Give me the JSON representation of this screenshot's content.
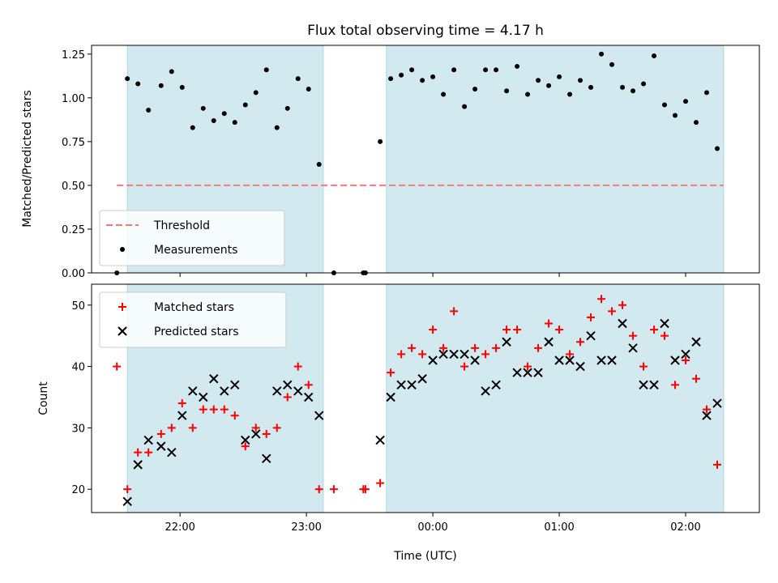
{
  "chart_data": [
    {
      "type": "scatter",
      "title": "Flux total observing time = 4.17 h",
      "xlabel": "",
      "ylabel": "Matched/Predicted stars",
      "ylim": [
        0,
        1.3
      ],
      "yticks": [
        "0.00",
        "0.25",
        "0.50",
        "0.75",
        "1.00",
        "1.25"
      ],
      "grid": false,
      "legend_position": "lower-left",
      "shaded_intervals": [
        [
          "21:35",
          "23:08"
        ],
        [
          "23:38",
          "02:18"
        ]
      ],
      "threshold": {
        "name": "Threshold",
        "value": 0.5,
        "color": "#f87878",
        "style": "dashed"
      },
      "series": [
        {
          "name": "Measurements",
          "color": "#000000",
          "marker": "dot",
          "points": [
            [
              "21:30",
              0.0
            ],
            [
              "21:35",
              1.11
            ],
            [
              "21:40",
              1.08
            ],
            [
              "21:45",
              0.93
            ],
            [
              "21:51",
              1.07
            ],
            [
              "21:56",
              1.15
            ],
            [
              "22:01",
              1.06
            ],
            [
              "22:06",
              0.83
            ],
            [
              "22:11",
              0.94
            ],
            [
              "22:16",
              0.87
            ],
            [
              "22:21",
              0.91
            ],
            [
              "22:26",
              0.86
            ],
            [
              "22:31",
              0.96
            ],
            [
              "22:36",
              1.03
            ],
            [
              "22:41",
              1.16
            ],
            [
              "22:46",
              0.83
            ],
            [
              "22:51",
              0.94
            ],
            [
              "22:56",
              1.11
            ],
            [
              "23:01",
              1.05
            ],
            [
              "23:06",
              0.62
            ],
            [
              "23:13",
              0.0
            ],
            [
              "23:27",
              0.0
            ],
            [
              "23:28",
              0.0
            ],
            [
              "23:35",
              0.75
            ],
            [
              "23:40",
              1.11
            ],
            [
              "23:45",
              1.13
            ],
            [
              "23:50",
              1.16
            ],
            [
              "23:55",
              1.1
            ],
            [
              "00:00",
              1.12
            ],
            [
              "00:05",
              1.02
            ],
            [
              "00:10",
              1.16
            ],
            [
              "00:15",
              0.95
            ],
            [
              "00:20",
              1.05
            ],
            [
              "00:25",
              1.16
            ],
            [
              "00:30",
              1.16
            ],
            [
              "00:35",
              1.04
            ],
            [
              "00:40",
              1.18
            ],
            [
              "00:45",
              1.02
            ],
            [
              "00:50",
              1.1
            ],
            [
              "00:55",
              1.07
            ],
            [
              "01:00",
              1.12
            ],
            [
              "01:05",
              1.02
            ],
            [
              "01:10",
              1.1
            ],
            [
              "01:15",
              1.06
            ],
            [
              "01:20",
              1.25
            ],
            [
              "01:25",
              1.19
            ],
            [
              "01:30",
              1.06
            ],
            [
              "01:35",
              1.04
            ],
            [
              "01:40",
              1.08
            ],
            [
              "01:45",
              1.24
            ],
            [
              "01:50",
              0.96
            ],
            [
              "01:55",
              0.9
            ],
            [
              "02:00",
              0.98
            ],
            [
              "02:05",
              0.86
            ],
            [
              "02:10",
              1.03
            ],
            [
              "02:15",
              0.71
            ]
          ]
        }
      ]
    },
    {
      "type": "scatter",
      "title": "",
      "xlabel": "Time (UTC)",
      "ylabel": "Count",
      "ylim": [
        16.2,
        53.4
      ],
      "yticks": [
        "20",
        "30",
        "40",
        "50"
      ],
      "xticks": [
        "22:00",
        "23:00",
        "00:00",
        "01:00",
        "02:00"
      ],
      "grid": false,
      "legend_position": "top-left",
      "shaded_intervals": [
        [
          "21:35",
          "23:08"
        ],
        [
          "23:38",
          "02:18"
        ]
      ],
      "series": [
        {
          "name": "Matched stars",
          "color": "#ff0000",
          "marker": "plus",
          "points": [
            [
              "21:30",
              40
            ],
            [
              "21:35",
              20
            ],
            [
              "21:40",
              26
            ],
            [
              "21:45",
              26
            ],
            [
              "21:51",
              29
            ],
            [
              "21:56",
              30
            ],
            [
              "22:01",
              34
            ],
            [
              "22:06",
              30
            ],
            [
              "22:11",
              33
            ],
            [
              "22:16",
              33
            ],
            [
              "22:21",
              33
            ],
            [
              "22:26",
              32
            ],
            [
              "22:31",
              27
            ],
            [
              "22:36",
              30
            ],
            [
              "22:41",
              29
            ],
            [
              "22:46",
              30
            ],
            [
              "22:51",
              35
            ],
            [
              "22:56",
              40
            ],
            [
              "23:01",
              37
            ],
            [
              "23:06",
              20
            ],
            [
              "23:13",
              20
            ],
            [
              "23:27",
              20
            ],
            [
              "23:28",
              20
            ],
            [
              "23:35",
              21
            ],
            [
              "23:40",
              39
            ],
            [
              "23:45",
              42
            ],
            [
              "23:50",
              43
            ],
            [
              "23:55",
              42
            ],
            [
              "00:00",
              46
            ],
            [
              "00:05",
              43
            ],
            [
              "00:10",
              49
            ],
            [
              "00:15",
              40
            ],
            [
              "00:20",
              43
            ],
            [
              "00:25",
              42
            ],
            [
              "00:30",
              43
            ],
            [
              "00:35",
              46
            ],
            [
              "00:40",
              46
            ],
            [
              "00:45",
              40
            ],
            [
              "00:50",
              43
            ],
            [
              "00:55",
              47
            ],
            [
              "01:00",
              46
            ],
            [
              "01:05",
              42
            ],
            [
              "01:10",
              44
            ],
            [
              "01:15",
              48
            ],
            [
              "01:20",
              51
            ],
            [
              "01:25",
              49
            ],
            [
              "01:30",
              50
            ],
            [
              "01:35",
              45
            ],
            [
              "01:40",
              40
            ],
            [
              "01:45",
              46
            ],
            [
              "01:50",
              45
            ],
            [
              "01:55",
              37
            ],
            [
              "02:00",
              41
            ],
            [
              "02:05",
              38
            ],
            [
              "02:10",
              33
            ],
            [
              "02:15",
              24
            ]
          ]
        },
        {
          "name": "Predicted stars",
          "color": "#000000",
          "marker": "x",
          "points": [
            [
              "21:35",
              18
            ],
            [
              "21:40",
              24
            ],
            [
              "21:45",
              28
            ],
            [
              "21:51",
              27
            ],
            [
              "21:56",
              26
            ],
            [
              "22:01",
              32
            ],
            [
              "22:06",
              36
            ],
            [
              "22:11",
              35
            ],
            [
              "22:16",
              38
            ],
            [
              "22:21",
              36
            ],
            [
              "22:26",
              37
            ],
            [
              "22:31",
              28
            ],
            [
              "22:36",
              29
            ],
            [
              "22:41",
              25
            ],
            [
              "22:46",
              36
            ],
            [
              "22:51",
              37
            ],
            [
              "22:56",
              36
            ],
            [
              "23:01",
              35
            ],
            [
              "23:06",
              32
            ],
            [
              "23:35",
              28
            ],
            [
              "23:40",
              35
            ],
            [
              "23:45",
              37
            ],
            [
              "23:50",
              37
            ],
            [
              "23:55",
              38
            ],
            [
              "00:00",
              41
            ],
            [
              "00:05",
              42
            ],
            [
              "00:10",
              42
            ],
            [
              "00:15",
              42
            ],
            [
              "00:20",
              41
            ],
            [
              "00:25",
              36
            ],
            [
              "00:30",
              37
            ],
            [
              "00:35",
              44
            ],
            [
              "00:40",
              39
            ],
            [
              "00:45",
              39
            ],
            [
              "00:50",
              39
            ],
            [
              "00:55",
              44
            ],
            [
              "01:00",
              41
            ],
            [
              "01:05",
              41
            ],
            [
              "01:10",
              40
            ],
            [
              "01:15",
              45
            ],
            [
              "01:20",
              41
            ],
            [
              "01:25",
              41
            ],
            [
              "01:30",
              47
            ],
            [
              "01:35",
              43
            ],
            [
              "01:40",
              37
            ],
            [
              "01:45",
              37
            ],
            [
              "01:50",
              47
            ],
            [
              "01:55",
              41
            ],
            [
              "02:00",
              42
            ],
            [
              "02:05",
              44
            ],
            [
              "02:10",
              32
            ],
            [
              "02:15",
              34
            ]
          ]
        }
      ]
    }
  ],
  "colors": {
    "shade": "#d3e9f0",
    "shade_edge": "#aad7e0"
  }
}
